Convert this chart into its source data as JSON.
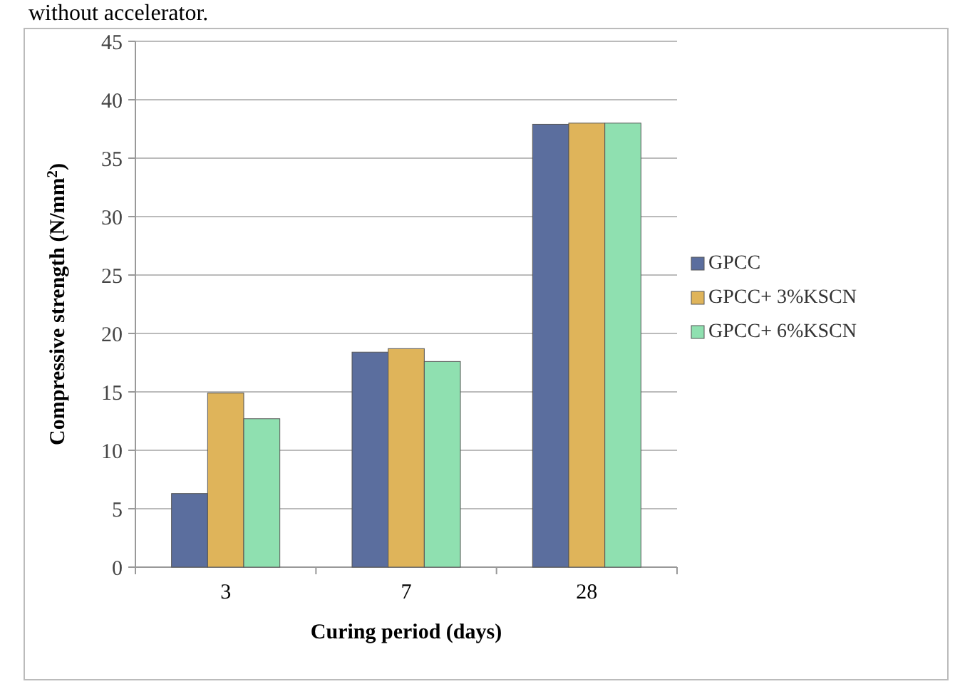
{
  "chart_data": {
    "type": "bar",
    "annotations": [
      "without accelerator."
    ],
    "xlabel": "Curing period (days)",
    "ylabel": "Compressive strength (N/mm$^{2}$)",
    "categories": [
      "3",
      "7",
      "28"
    ],
    "series": [
      {
        "name": "GPCC",
        "color": "#5b6e9e",
        "values": [
          6.3,
          18.4,
          37.9
        ]
      },
      {
        "name": "GPCC+ 3%KSCN",
        "color": "#dfb45a",
        "values": [
          14.9,
          18.7,
          38
        ]
      },
      {
        "name": "GPCC+ 6%KSCN",
        "color": "#8fe0b0",
        "values": [
          12.7,
          17.6,
          38
        ]
      }
    ],
    "ylim": [
      0,
      45
    ],
    "yticks": [
      0,
      5,
      10,
      15,
      20,
      25,
      30,
      35,
      40,
      45
    ],
    "grid": "y",
    "legend": "right"
  }
}
